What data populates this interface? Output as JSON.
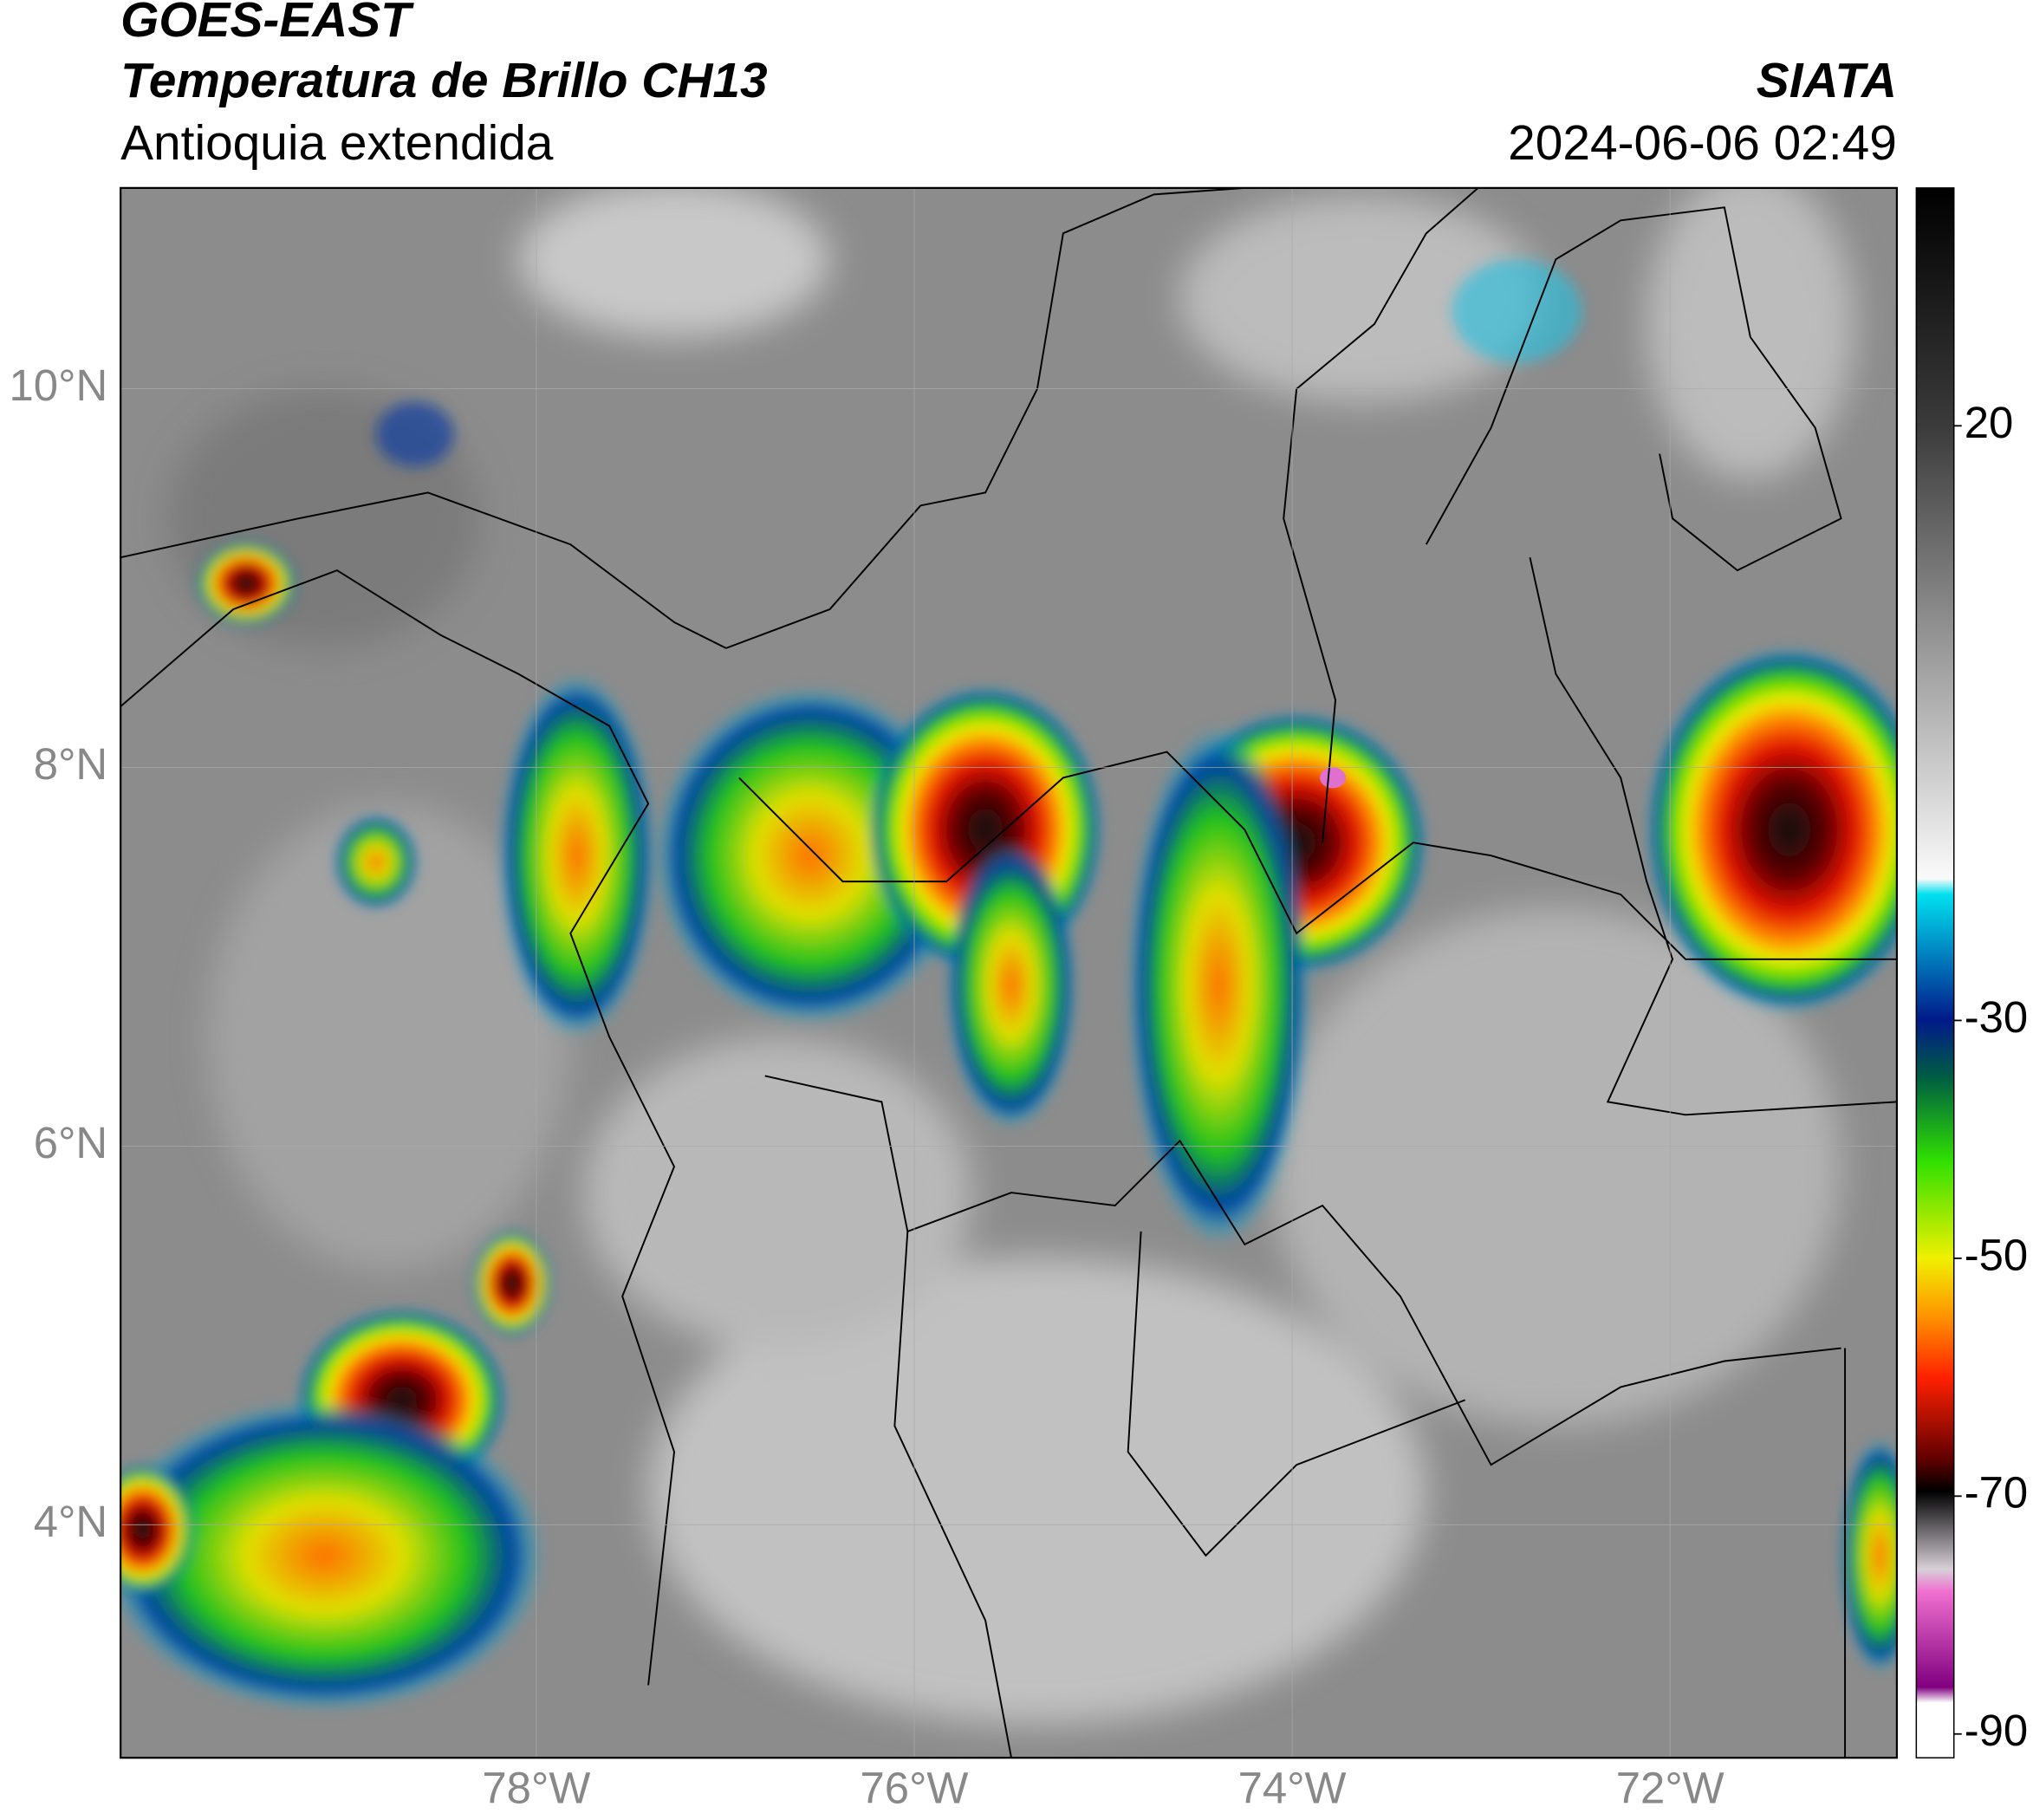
{
  "header": {
    "satellite": "GOES-EAST",
    "product": "Temperatura de Brillo CH13",
    "region": "Antioquia extendida",
    "source": "SIATA",
    "datetime": "2024-06-06 02:49"
  },
  "map": {
    "xlim": [
      -80.2,
      -70.8
    ],
    "ylim": [
      2.77,
      11.06
    ],
    "xticks": [
      {
        "value": -78,
        "label": "78°W"
      },
      {
        "value": -76,
        "label": "76°W"
      },
      {
        "value": -74,
        "label": "74°W"
      },
      {
        "value": -72,
        "label": "72°W"
      }
    ],
    "yticks": [
      {
        "value": 10,
        "label": "10°N"
      },
      {
        "value": 8,
        "label": "8°N"
      },
      {
        "value": 6,
        "label": "6°N"
      },
      {
        "value": 4,
        "label": "4°N"
      }
    ],
    "grid": true
  },
  "colorbar": {
    "lim": [
      -92,
      40
    ],
    "ticks": [
      20,
      -30,
      -50,
      -70,
      -90
    ]
  }
}
